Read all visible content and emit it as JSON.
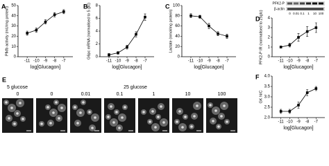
{
  "chart_data": [
    {
      "panel": "A",
      "type": "line",
      "x": [
        -11,
        -10,
        -9,
        -8,
        -7
      ],
      "values": [
        23,
        26,
        34,
        41,
        44
      ],
      "errors": [
        2,
        2,
        2,
        2,
        2
      ],
      "color": "#000000",
      "xlabel": "log[Glucagon]",
      "ylabel": "Pfkfb activity (mU/mg protein)",
      "xlim": [
        -12,
        -6
      ],
      "xticks": [
        -11,
        -10,
        -9,
        -8,
        -7
      ],
      "ylim": [
        0,
        50
      ],
      "yticks": [
        0,
        10,
        20,
        30,
        40,
        50
      ]
    },
    {
      "panel": "B",
      "type": "line",
      "x": [
        -11,
        -10,
        -9,
        -8,
        -7
      ],
      "values": [
        0.3,
        0.6,
        1.5,
        3.5,
        6.2
      ],
      "errors": [
        0.2,
        0.2,
        0.3,
        0.4,
        0.5
      ],
      "color": "#000000",
      "xlabel": "log[Glucagon]",
      "ylabel": "G6pc mRNA (normalised to 5 glc)",
      "xlim": [
        -12,
        -6
      ],
      "xticks": [
        -11,
        -10,
        -9,
        -8,
        -7
      ],
      "ylim": [
        0,
        8
      ],
      "yticks": [
        0,
        2,
        4,
        6,
        8
      ]
    },
    {
      "panel": "C",
      "type": "line",
      "x": [
        -11,
        -10,
        -9,
        -8,
        -7
      ],
      "values": [
        80,
        78,
        60,
        45,
        40
      ],
      "errors": [
        4,
        3,
        5,
        4,
        4
      ],
      "color": "#000000",
      "xlabel": "log[Glucagon]",
      "ylabel": "Lactate (nmol/mg protein)",
      "xlim": [
        -12,
        -6
      ],
      "xticks": [
        -11,
        -10,
        -9,
        -8,
        -7
      ],
      "ylim": [
        0,
        100
      ],
      "yticks": [
        0,
        20,
        40,
        60,
        80,
        100
      ]
    },
    {
      "panel": "D",
      "type": "line",
      "x": [
        -11,
        -10,
        -9,
        -8,
        -7
      ],
      "values": [
        1.0,
        1.2,
        2.0,
        2.6,
        3.0
      ],
      "errors": [
        0.1,
        0.2,
        0.4,
        0.5,
        0.5
      ],
      "color": "#000000",
      "xlabel": "log[Glucagon]",
      "ylabel": "PFK2-P IR (normalised to 25glc)",
      "xlim": [
        -12,
        -6
      ],
      "xticks": [
        -11,
        -10,
        -9,
        -8,
        -7
      ],
      "ylim": [
        0,
        4
      ],
      "yticks": [
        0,
        1,
        2,
        3,
        4
      ]
    },
    {
      "panel": "F",
      "type": "line",
      "x": [
        -11,
        -10,
        -9,
        -8,
        -7
      ],
      "values": [
        2.3,
        2.3,
        2.6,
        3.2,
        3.4
      ],
      "errors": [
        0.1,
        0.1,
        0.15,
        0.15,
        0.1
      ],
      "color": "#000000",
      "xlabel": "log[Glucagon]",
      "ylabel": "GK N/C",
      "xlim": [
        -12,
        -6
      ],
      "xticks": [
        -11,
        -10,
        -9,
        -8,
        -7
      ],
      "ylim": [
        2.0,
        4.0
      ],
      "yticks": [
        {
          "value": 2.0,
          "label": "2.0"
        },
        {
          "value": 2.5,
          "label": "2.5"
        },
        {
          "value": 3.0,
          "label": "3.0"
        },
        {
          "value": 3.5,
          "label": "3.5"
        },
        {
          "value": 4.0,
          "label": "4.0"
        }
      ]
    }
  ],
  "blot": {
    "labels": [
      "PFK2-P",
      "β-actin"
    ],
    "lanes": [
      "0",
      "0.01",
      "0.1",
      "1",
      "10",
      "100"
    ]
  },
  "image_panel": {
    "panel": "E",
    "groups": [
      "5 glucose",
      "25 glucose"
    ],
    "columns": [
      "0",
      "0",
      "0.01",
      "0.1",
      "1",
      "10",
      "100"
    ]
  }
}
